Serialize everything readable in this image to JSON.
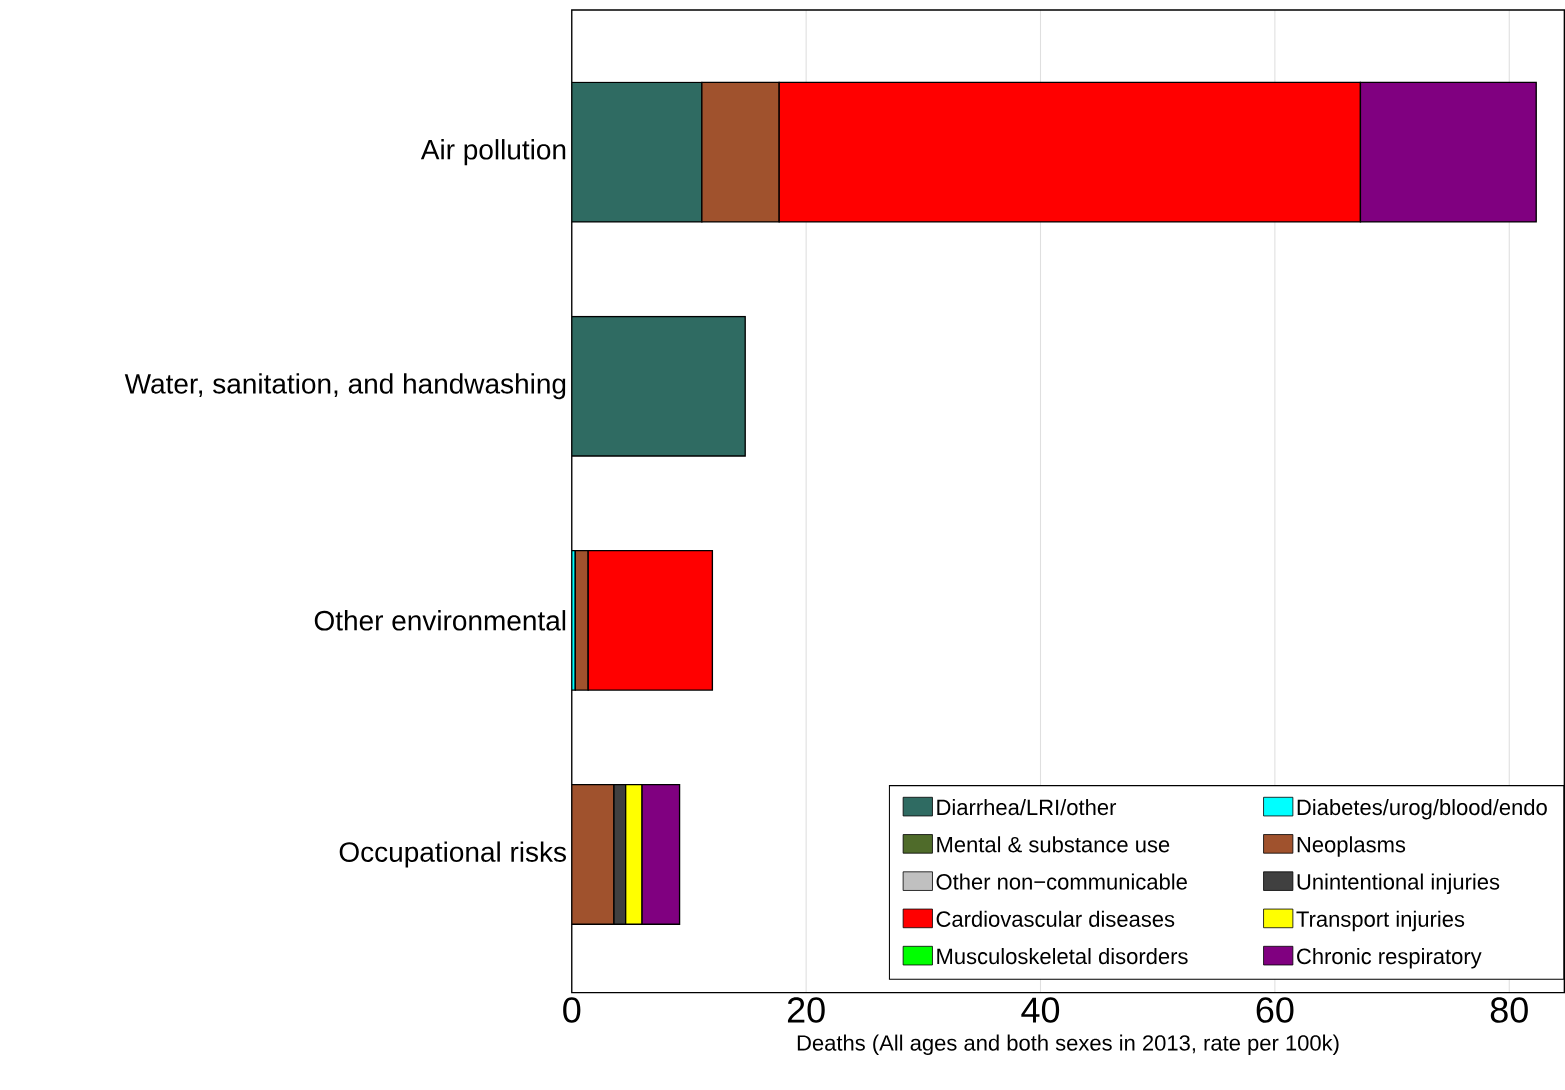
{
  "chart_data": {
    "type": "bar",
    "orientation": "horizontal",
    "stacked": true,
    "categories": [
      "Air pollution",
      "Water, sanitation, and handwashing",
      "Other environmental",
      "Occupational risks"
    ],
    "xlabel": "Deaths (All ages and both sexes in 2013, rate per 100k)",
    "xlim": [
      0,
      84.7
    ],
    "xticks": [
      0,
      20,
      40,
      60,
      80
    ],
    "grid": "x",
    "legend": "bottom right",
    "series": [
      {
        "name": "Diarrhea/LRI/other",
        "color": "#2f6b62",
        "values": [
          11.1,
          14.8,
          null,
          null
        ]
      },
      {
        "name": "Diabetes/urog/blood/endo",
        "color": "#00ffff",
        "values": [
          null,
          null,
          0.3,
          null
        ]
      },
      {
        "name": "Mental & substance use",
        "color": "#4f6b2a",
        "values": [
          null,
          null,
          null,
          null
        ]
      },
      {
        "name": "Neoplasms",
        "color": "#a0522d",
        "values": [
          6.6,
          null,
          1.1,
          3.6
        ]
      },
      {
        "name": "Other non−communicable",
        "color": "#c0c0c0",
        "values": [
          null,
          null,
          null,
          null
        ]
      },
      {
        "name": "Unintentional injuries",
        "color": "#404040",
        "values": [
          null,
          null,
          null,
          1.0
        ]
      },
      {
        "name": "Cardiovascular diseases",
        "color": "#ff0000",
        "values": [
          49.6,
          null,
          10.6,
          null
        ]
      },
      {
        "name": "Transport injuries",
        "color": "#ffff00",
        "values": [
          null,
          null,
          null,
          1.4
        ]
      },
      {
        "name": "Musculoskeletal disorders",
        "color": "#00ff00",
        "values": [
          null,
          null,
          null,
          null
        ]
      },
      {
        "name": "Chronic respiratory",
        "color": "#800080",
        "values": [
          15.0,
          null,
          null,
          3.2
        ]
      }
    ]
  }
}
